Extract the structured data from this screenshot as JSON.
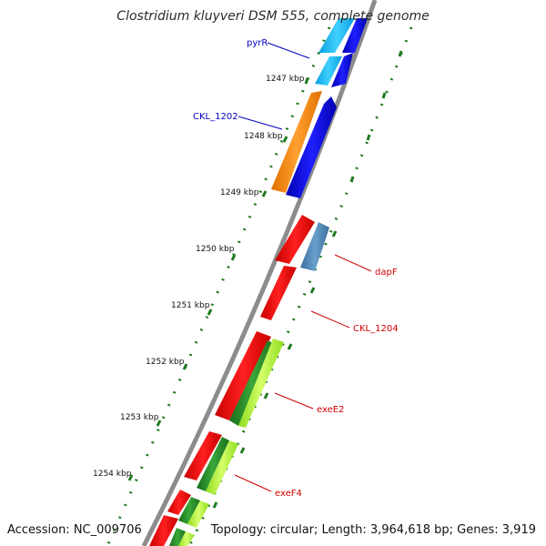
{
  "title": "Clostridium kluyveri DSM 555, complete genome",
  "accession": "Accession: NC_009706",
  "summary": "Topology: circular; Length: 3,964,618 bp; Genes: 3,919",
  "ticks": [
    "1247 kbp",
    "1248 kbp",
    "1249 kbp",
    "1250 kbp",
    "1251 kbp",
    "1252 kbp",
    "1253 kbp",
    "1254 kbp"
  ],
  "gene_labels": [
    "pyrR",
    "CKL_1202",
    "dapF",
    "CKL_1204",
    "exeE2",
    "exeF4"
  ],
  "colors": {
    "backbone": "#8c8c8c",
    "dots": "#1f7a1f",
    "tick": "#1f7a1f",
    "forward_cds": "#ff0000",
    "reverse_cds": "#0000ff",
    "cyan": "#00bfff",
    "orange": "#ff8c00",
    "steelblue": "#4682b4",
    "darkgreen": "#228b22",
    "lightgreen": "#adff2f",
    "label_right": "#d00000",
    "label_left": "#0000c0"
  }
}
